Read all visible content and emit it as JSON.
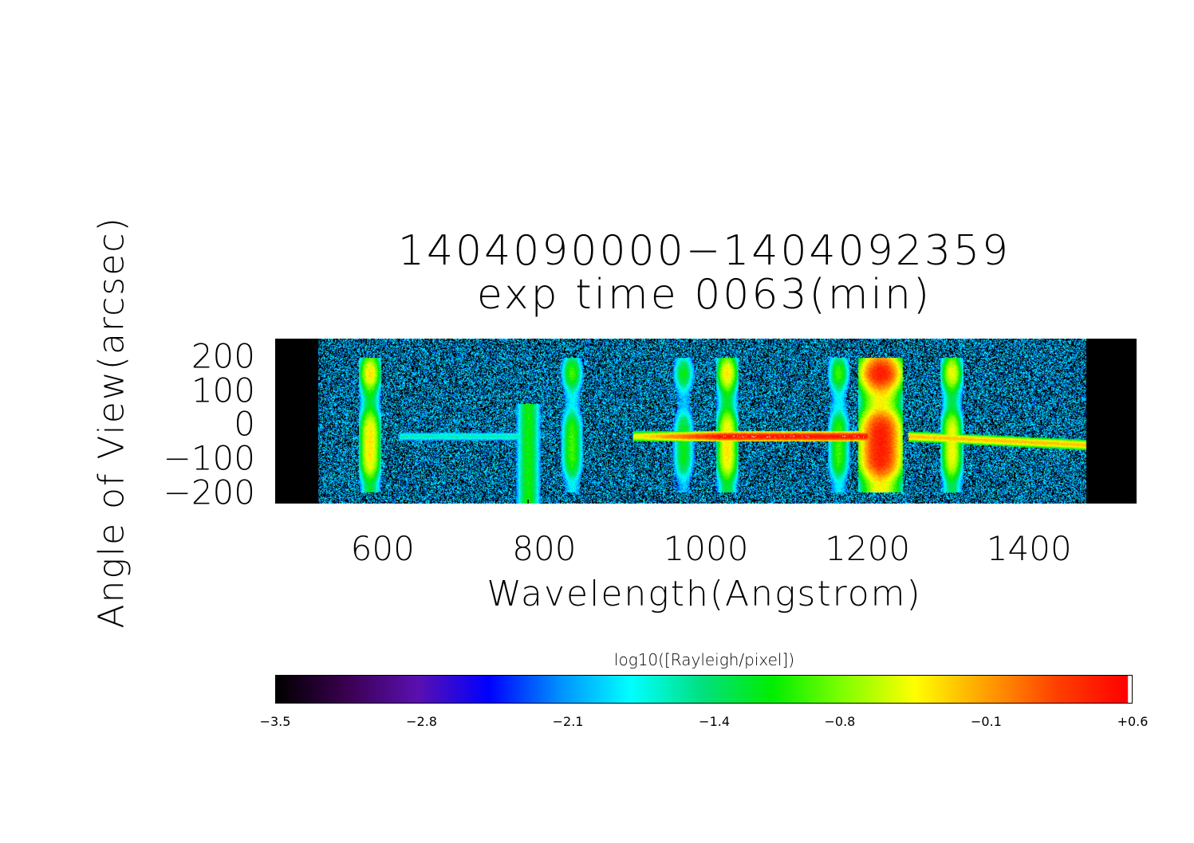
{
  "chart_data": {
    "type": "heatmap",
    "title": [
      "1404090000−1404092359",
      "exp time 0063(min)"
    ],
    "xlabel": "Wavelength(Angstrom)",
    "ylabel": "Angle of View(arcsec)",
    "xlim": [
      467,
      1533
    ],
    "ylim": [
      -233,
      251
    ],
    "xticks": [
      600,
      800,
      1000,
      1200,
      1400
    ],
    "xtick_labels": [
      "600",
      "800",
      "1000",
      "1200",
      "1400"
    ],
    "yticks": [
      200,
      100,
      0,
      -100,
      -200
    ],
    "ytick_labels": [
      "200",
      "100",
      "0",
      "−100",
      "−200"
    ],
    "data_extent_x": [
      520,
      1470
    ],
    "emission_lines": [
      {
        "wavelength": 584,
        "peak": -0.2
      },
      {
        "wavelength": 780,
        "peak": -1.1
      },
      {
        "wavelength": 834,
        "peak": -0.8
      },
      {
        "wavelength": 972,
        "peak": -1.0
      },
      {
        "wavelength": 1026,
        "peak": -0.2
      },
      {
        "wavelength": 1164,
        "peak": -0.8
      },
      {
        "wavelength": 1216,
        "peak": 0.6
      },
      {
        "wavelength": 1304,
        "peak": -0.3
      }
    ],
    "colorbar": {
      "label": "log10([Rayleigh/pixel])",
      "range": [
        -3.5,
        0.6
      ],
      "ticks": [
        -3.5,
        -2.8,
        -2.1,
        -1.4,
        -0.8,
        -0.1,
        0.6
      ],
      "tick_labels": [
        "−3.5",
        "−2.8",
        "−2.1",
        "−1.4",
        "−0.8",
        "−0.1",
        "+0.6"
      ],
      "colormap": [
        "#000000",
        "#3a0050",
        "#5a10b0",
        "#0000ff",
        "#0090ff",
        "#00ffff",
        "#00e080",
        "#00ee00",
        "#80ff00",
        "#ffff00",
        "#ffa000",
        "#ff4000",
        "#ff0000"
      ]
    }
  }
}
